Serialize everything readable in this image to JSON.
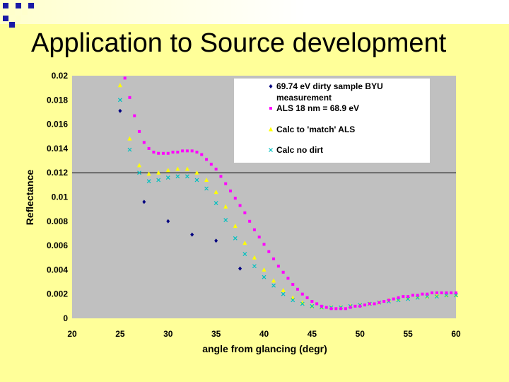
{
  "slide": {
    "title": "Application to Source development",
    "background_color": "#ffff99",
    "decoration_colors": [
      "#1a1aa6",
      "#ffffcc"
    ]
  },
  "chart_data": {
    "type": "scatter",
    "title": "",
    "xlabel": "angle from glancing (degr)",
    "ylabel": "Reflectance",
    "xlim": [
      20,
      60
    ],
    "ylim": [
      0,
      0.02
    ],
    "x_ticks": [
      "20",
      "25",
      "30",
      "35",
      "40",
      "45",
      "50",
      "55",
      "60"
    ],
    "y_ticks": [
      "0",
      "0.002",
      "0.004",
      "0.006",
      "0.008",
      "0.01",
      "0.012",
      "0.014",
      "0.016",
      "0.018",
      "0.02"
    ],
    "plot_background": "#c0c0c0",
    "grid": "horizontal line at 0.012",
    "legend_position": "top-right",
    "series": [
      {
        "name": "69.74 eV dirty sample BYU measurement",
        "marker": "diamond",
        "color": "#000080",
        "x": [
          25,
          27.5,
          30,
          32.5,
          35,
          37.5
        ],
        "y": [
          0.0171,
          0.0096,
          0.008,
          0.0069,
          0.0064,
          0.0041
        ]
      },
      {
        "name": "ALS 18 nm = 68.9 eV",
        "marker": "square",
        "color": "#ff00ff",
        "x": [
          25.5,
          26.0,
          26.5,
          27.0,
          27.5,
          28.0,
          28.5,
          29.0,
          29.5,
          30.0,
          30.5,
          31.0,
          31.5,
          32.0,
          32.5,
          33.0,
          33.5,
          34.0,
          34.5,
          35.0,
          35.5,
          36.0,
          36.5,
          37.0,
          37.5,
          38.0,
          38.5,
          39.0,
          39.5,
          40.0,
          40.5,
          41.0,
          41.5,
          42.0,
          42.5,
          43.0,
          43.5,
          44.0,
          44.5,
          45.0,
          45.5,
          46.0,
          46.5,
          47.0,
          47.5,
          48.0,
          48.5,
          49.0,
          49.5,
          50.0,
          50.5,
          51.0,
          51.5,
          52.0,
          52.5,
          53.0,
          53.5,
          54.0,
          54.5,
          55.0,
          55.5,
          56.0,
          56.5,
          57.0,
          57.5,
          58.0,
          58.5,
          59.0,
          59.5,
          60.0
        ],
        "y": [
          0.0198,
          0.0182,
          0.0167,
          0.0154,
          0.0145,
          0.014,
          0.0137,
          0.0136,
          0.0136,
          0.0136,
          0.0137,
          0.0137,
          0.0138,
          0.0138,
          0.0138,
          0.0137,
          0.0135,
          0.0131,
          0.0127,
          0.0123,
          0.0117,
          0.0111,
          0.0105,
          0.0099,
          0.0093,
          0.0087,
          0.008,
          0.0073,
          0.0067,
          0.0061,
          0.0055,
          0.0049,
          0.0043,
          0.0038,
          0.0033,
          0.0028,
          0.0024,
          0.002,
          0.0017,
          0.0014,
          0.0012,
          0.001,
          0.0009,
          0.0008,
          0.0008,
          0.0008,
          0.0008,
          0.0009,
          0.001,
          0.001,
          0.0011,
          0.0012,
          0.0012,
          0.0013,
          0.0014,
          0.0015,
          0.0016,
          0.0017,
          0.0018,
          0.0018,
          0.0019,
          0.0019,
          0.002,
          0.002,
          0.0021,
          0.0021,
          0.0021,
          0.0021,
          0.0021,
          0.0021
        ]
      },
      {
        "name": "Calc to 'match' ALS",
        "marker": "triangle",
        "color": "#ffff00",
        "x": [
          25,
          26,
          27,
          28,
          29,
          30,
          31,
          32,
          33,
          34,
          35,
          36,
          37,
          38,
          39,
          40,
          41,
          42,
          43,
          44,
          45,
          46,
          47,
          48,
          49,
          50,
          51,
          52,
          53,
          54,
          55,
          56,
          57,
          58,
          59,
          60
        ],
        "y": [
          0.0192,
          0.0148,
          0.0126,
          0.0119,
          0.012,
          0.0122,
          0.0123,
          0.0123,
          0.012,
          0.0114,
          0.0104,
          0.0092,
          0.0076,
          0.0062,
          0.005,
          0.004,
          0.0031,
          0.0023,
          0.0017,
          0.0013,
          0.001,
          0.0009,
          0.0009,
          0.0009,
          0.001,
          0.0011,
          0.0012,
          0.0013,
          0.0015,
          0.0016,
          0.0017,
          0.0018,
          0.0018,
          0.0019,
          0.0019,
          0.0019
        ]
      },
      {
        "name": "Calc no dirt",
        "marker": "x",
        "color": "#00c0c0",
        "x": [
          25,
          26,
          27,
          28,
          29,
          30,
          31,
          32,
          33,
          34,
          35,
          36,
          37,
          38,
          39,
          40,
          41,
          42,
          43,
          44,
          45,
          46,
          47,
          48,
          49,
          50,
          51,
          52,
          53,
          54,
          55,
          56,
          57,
          58,
          59,
          60
        ],
        "y": [
          0.018,
          0.0139,
          0.012,
          0.0113,
          0.0114,
          0.0116,
          0.0117,
          0.0117,
          0.0114,
          0.0107,
          0.0095,
          0.0081,
          0.0066,
          0.0053,
          0.0043,
          0.0034,
          0.0027,
          0.002,
          0.0015,
          0.0012,
          0.001,
          0.0009,
          0.0009,
          0.0009,
          0.001,
          0.0011,
          0.0012,
          0.0013,
          0.0014,
          0.0015,
          0.0016,
          0.0017,
          0.0018,
          0.0018,
          0.0019,
          0.0019
        ]
      }
    ],
    "legend": [
      {
        "line1": "69.74 eV dirty sample BYU",
        "line2": "measurement"
      },
      {
        "line1": "ALS 18 nm = 68.9 eV"
      },
      {
        "line1": "Calc to 'match' ALS"
      },
      {
        "line1": "Calc no dirt"
      }
    ]
  }
}
